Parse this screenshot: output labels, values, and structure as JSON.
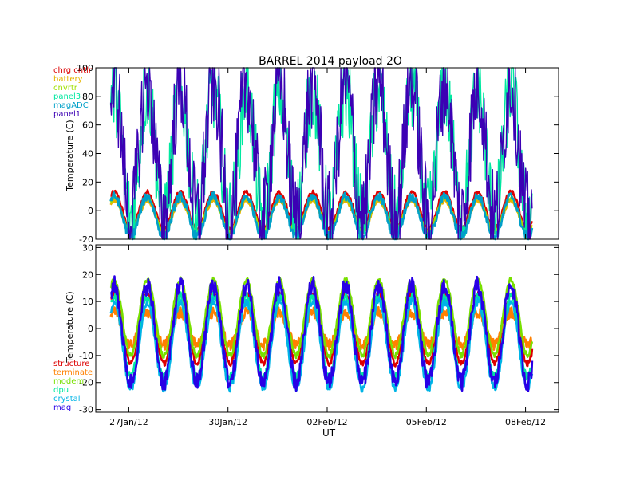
{
  "title": "BARREL 2014 payload 2O",
  "chart_data": [
    {
      "type": "line",
      "ylabel": "Temperature (C)",
      "ylim": [
        -20,
        100
      ],
      "yticks": [
        -20,
        0,
        20,
        40,
        60,
        80,
        100
      ],
      "xlim": [
        0,
        14
      ],
      "legend_position": "top-left",
      "series": [
        {
          "name": "chrg cntlr",
          "color": "#dd0000",
          "mean": 0,
          "amp": 13,
          "noise": 1.5
        },
        {
          "name": "battery",
          "color": "#e6b400",
          "mean": -4,
          "amp": 11,
          "noise": 1.2
        },
        {
          "name": "cnvrtr",
          "color": "#a0e000",
          "mean": -3,
          "amp": 12,
          "noise": 1.2
        },
        {
          "name": "panel3",
          "color": "#00e8a0",
          "mean": 40,
          "amp": 45,
          "noise": 25
        },
        {
          "name": "magADC",
          "color": "#00a0c8",
          "mean": -4,
          "amp": 14,
          "noise": 3
        },
        {
          "name": "panel1",
          "color": "#3c00b4",
          "mean": 42,
          "amp": 48,
          "noise": 28
        }
      ]
    },
    {
      "type": "line",
      "xlabel": "UT",
      "ylabel": "Temperature (C)",
      "ylim": [
        -31,
        31
      ],
      "yticks": [
        -30,
        -20,
        -10,
        0,
        10,
        20,
        30
      ],
      "xlim": [
        0,
        14
      ],
      "xticks": [
        {
          "value": 1,
          "label": "27Jan/12"
        },
        {
          "value": 4,
          "label": "30Jan/12"
        },
        {
          "value": 7,
          "label": "02Feb/12"
        },
        {
          "value": 10,
          "label": "05Feb/12"
        },
        {
          "value": 13,
          "label": "08Feb/12"
        }
      ],
      "legend_position": "bottom-left",
      "series": [
        {
          "name": "structure",
          "color": "#dd0000",
          "mean": 0,
          "amp": 13,
          "noise": 1.0
        },
        {
          "name": "terminate",
          "color": "#ff8000",
          "mean": 0,
          "amp": 6,
          "noise": 2.0
        },
        {
          "name": "modem",
          "color": "#78e000",
          "mean": 4,
          "amp": 14,
          "noise": 1.0
        },
        {
          "name": "dpu",
          "color": "#00e8a0",
          "mean": -3,
          "amp": 15,
          "noise": 1.5
        },
        {
          "name": "crystal",
          "color": "#00b4e6",
          "mean": -6,
          "amp": 16,
          "noise": 1.5
        },
        {
          "name": "mag",
          "color": "#2800e6",
          "mean": -2,
          "amp": 18,
          "noise": 3.5
        }
      ]
    }
  ]
}
